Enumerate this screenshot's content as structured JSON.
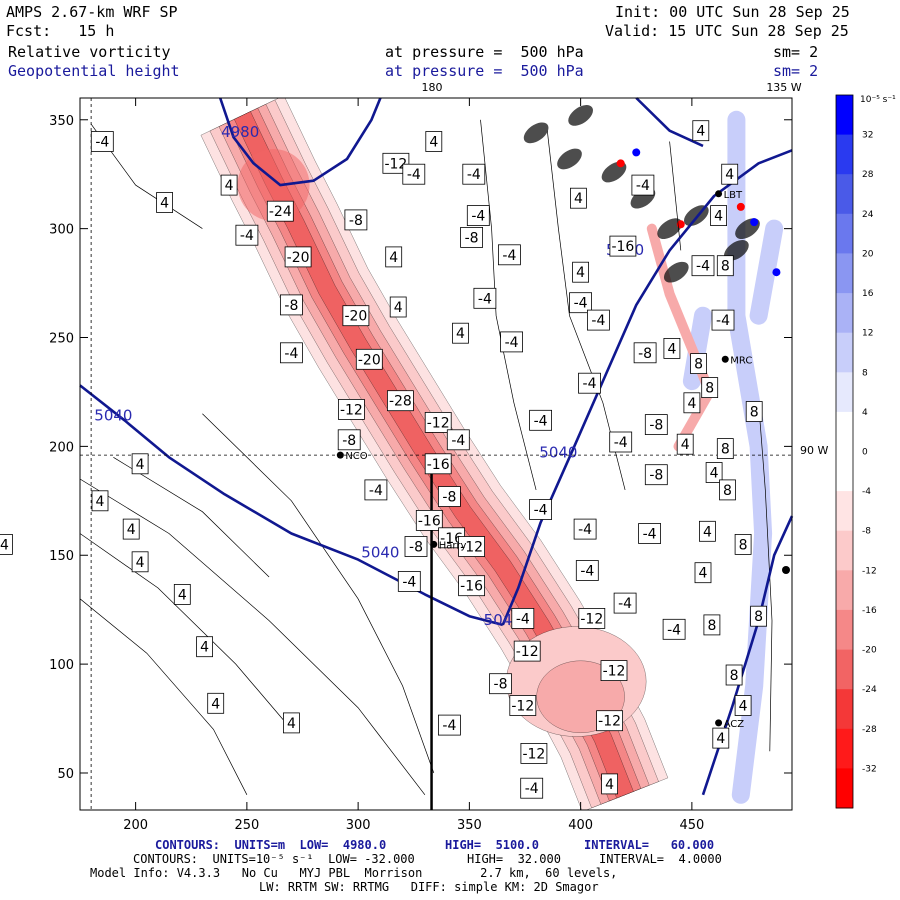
{
  "header": {
    "model": "AMPS 2.67-km WRF SP",
    "init": "Init: 00 UTC Sun 28 Sep 25",
    "fcst": "Fcst:   15 h",
    "valid": "Valid: 15 UTC Sun 28 Sep 25",
    "field1_name": "Relative vorticity",
    "field1_level": "at pressure =  500 hPa",
    "field1_smooth": "sm= 2",
    "field2_name": "Geopotential height",
    "field2_level": "at pressure =  500 hPa",
    "field2_smooth": "sm= 2"
  },
  "map_labels": {
    "lon_180": "180",
    "lon_135w": "135 W",
    "lon_90w": "90 W"
  },
  "colorbar": {
    "units": "10⁻⁵ s⁻¹",
    "labels": [
      "32",
      "28",
      "24",
      "20",
      "16",
      "12",
      "8",
      "4",
      "0",
      "-4",
      "-8",
      "-12",
      "-16",
      "-20",
      "-24",
      "-28",
      "-32"
    ],
    "colors": [
      "#0000ff",
      "#2a3af0",
      "#4a5ae8",
      "#6a78ee",
      "#8a96f2",
      "#aab2f6",
      "#c8cefa",
      "#e6e9fd",
      "#ffffff",
      "#ffffff",
      "#ffe4e4",
      "#fccaca",
      "#f8aaaa",
      "#f58888",
      "#f26464",
      "#f43838",
      "#ff1a1a",
      "#ff0000"
    ]
  },
  "chart_data": {
    "type": "contour-map",
    "x_ticks": [
      200,
      250,
      300,
      350,
      400,
      450
    ],
    "y_ticks": [
      50,
      100,
      150,
      200,
      250,
      300,
      350
    ],
    "xlim": [
      175,
      495
    ],
    "ylim": [
      33,
      360
    ],
    "cross_section_x": 333,
    "height_contours": [
      {
        "value": "5040",
        "label_at": [
          190,
          212
        ]
      },
      {
        "value": "5040",
        "label_at": [
          310,
          149
        ]
      },
      {
        "value": "5040",
        "label_at": [
          365,
          118
        ]
      },
      {
        "value": "5040",
        "label_at": [
          390,
          195
        ]
      },
      {
        "value": "5040",
        "label_at": [
          420,
          288
        ]
      },
      {
        "value": "4980",
        "label_at": [
          247,
          342
        ]
      }
    ],
    "vorticity_labels": [
      {
        "v": "-4",
        "x": 185,
        "y": 340
      },
      {
        "v": "-24",
        "x": 265,
        "y": 308
      },
      {
        "v": "-20",
        "x": 273,
        "y": 287
      },
      {
        "v": "-12",
        "x": 317,
        "y": 330
      },
      {
        "v": "-8",
        "x": 299,
        "y": 304
      },
      {
        "v": "-4",
        "x": 250,
        "y": 297
      },
      {
        "v": "-8",
        "x": 270,
        "y": 265
      },
      {
        "v": "-20",
        "x": 299,
        "y": 260
      },
      {
        "v": "-4",
        "x": 270,
        "y": 243
      },
      {
        "v": "-20",
        "x": 305,
        "y": 240
      },
      {
        "v": "-12",
        "x": 297,
        "y": 217
      },
      {
        "v": "-28",
        "x": 319,
        "y": 221
      },
      {
        "v": "-12",
        "x": 336,
        "y": 211
      },
      {
        "v": "-8",
        "x": 296,
        "y": 203
      },
      {
        "v": "-16",
        "x": 336,
        "y": 192
      },
      {
        "v": "-4",
        "x": 308,
        "y": 180
      },
      {
        "v": "-8",
        "x": 341,
        "y": 177
      },
      {
        "v": "-16",
        "x": 332,
        "y": 166
      },
      {
        "v": "-16",
        "x": 342,
        "y": 158
      },
      {
        "v": "-8",
        "x": 326,
        "y": 154
      },
      {
        "v": "-12",
        "x": 351,
        "y": 154
      },
      {
        "v": "-4",
        "x": 323,
        "y": 138
      },
      {
        "v": "-16",
        "x": 351,
        "y": 136
      },
      {
        "v": "-4",
        "x": 374,
        "y": 121
      },
      {
        "v": "-12",
        "x": 405,
        "y": 121
      },
      {
        "v": "-12",
        "x": 376,
        "y": 106
      },
      {
        "v": "-8",
        "x": 364,
        "y": 91
      },
      {
        "v": "-12",
        "x": 415,
        "y": 97
      },
      {
        "v": "-12",
        "x": 374,
        "y": 81
      },
      {
        "v": "-12",
        "x": 413,
        "y": 74
      },
      {
        "v": "-4",
        "x": 341,
        "y": 72
      },
      {
        "v": "-12",
        "x": 379,
        "y": 59
      },
      {
        "v": "-4",
        "x": 378,
        "y": 43
      },
      {
        "v": "-4",
        "x": 325,
        "y": 325
      },
      {
        "v": "-4",
        "x": 352,
        "y": 325
      },
      {
        "v": "-4",
        "x": 354,
        "y": 306
      },
      {
        "v": "-8",
        "x": 351,
        "y": 296
      },
      {
        "v": "-4",
        "x": 368,
        "y": 288
      },
      {
        "v": "-4",
        "x": 357,
        "y": 268
      },
      {
        "v": "-4",
        "x": 369,
        "y": 248
      },
      {
        "v": "-4",
        "x": 400,
        "y": 266
      },
      {
        "v": "-16",
        "x": 419,
        "y": 292
      },
      {
        "v": "-4",
        "x": 408,
        "y": 258
      },
      {
        "v": "-8",
        "x": 429,
        "y": 243
      },
      {
        "v": "-4",
        "x": 404,
        "y": 229
      },
      {
        "v": "-4",
        "x": 382,
        "y": 212
      },
      {
        "v": "-4",
        "x": 345,
        "y": 203
      },
      {
        "v": "-4",
        "x": 418,
        "y": 202
      },
      {
        "v": "-8",
        "x": 434,
        "y": 210
      },
      {
        "v": "-8",
        "x": 434,
        "y": 187
      },
      {
        "v": "-4",
        "x": 382,
        "y": 171
      },
      {
        "v": "-4",
        "x": 402,
        "y": 162
      },
      {
        "v": "-4",
        "x": 431,
        "y": 160
      },
      {
        "v": "-4",
        "x": 403,
        "y": 143
      },
      {
        "v": "-4",
        "x": 420,
        "y": 128
      },
      {
        "v": "-4",
        "x": 442,
        "y": 116
      },
      {
        "v": "-4",
        "x": 428,
        "y": 320
      },
      {
        "v": "-4",
        "x": 455,
        "y": 283
      },
      {
        "v": "-4",
        "x": 464,
        "y": 258
      },
      {
        "v": "4",
        "x": 413,
        "y": 45
      },
      {
        "v": "4",
        "x": 236,
        "y": 82
      },
      {
        "v": "4",
        "x": 270,
        "y": 73
      },
      {
        "v": "4",
        "x": 231,
        "y": 108
      },
      {
        "v": "4",
        "x": 221,
        "y": 132
      },
      {
        "v": "4",
        "x": 202,
        "y": 147
      },
      {
        "v": "4",
        "x": 198,
        "y": 162
      },
      {
        "v": "4",
        "x": 141,
        "y": 155
      },
      {
        "v": "4",
        "x": 184,
        "y": 175
      },
      {
        "v": "4",
        "x": 202,
        "y": 192
      },
      {
        "v": "4",
        "x": 213,
        "y": 312
      },
      {
        "v": "4",
        "x": 242,
        "y": 320
      },
      {
        "v": "4",
        "x": 316,
        "y": 287
      },
      {
        "v": "4",
        "x": 318,
        "y": 264
      },
      {
        "v": "4",
        "x": 346,
        "y": 252
      },
      {
        "v": "4",
        "x": 334,
        "y": 340
      },
      {
        "v": "4",
        "x": 450,
        "y": 220
      },
      {
        "v": "4",
        "x": 447,
        "y": 201
      },
      {
        "v": "4",
        "x": 460,
        "y": 188
      },
      {
        "v": "4",
        "x": 457,
        "y": 161
      },
      {
        "v": "4",
        "x": 455,
        "y": 142
      },
      {
        "v": "4",
        "x": 473,
        "y": 81
      },
      {
        "v": "4",
        "x": 463,
        "y": 66
      },
      {
        "v": "4",
        "x": 454,
        "y": 345
      },
      {
        "v": "4",
        "x": 467,
        "y": 325
      },
      {
        "v": "4",
        "x": 462,
        "y": 306
      },
      {
        "v": "4",
        "x": 441,
        "y": 245
      },
      {
        "v": "4",
        "x": 399,
        "y": 314
      },
      {
        "v": "4",
        "x": 400,
        "y": 280
      },
      {
        "v": "8",
        "x": 453,
        "y": 238
      },
      {
        "v": "8",
        "x": 458,
        "y": 227
      },
      {
        "v": "8",
        "x": 478,
        "y": 216
      },
      {
        "v": "8",
        "x": 465,
        "y": 199
      },
      {
        "v": "8",
        "x": 466,
        "y": 180
      },
      {
        "v": "8",
        "x": 473,
        "y": 155
      },
      {
        "v": "8",
        "x": 480,
        "y": 122
      },
      {
        "v": "8",
        "x": 459,
        "y": 118
      },
      {
        "v": "8",
        "x": 469,
        "y": 95
      },
      {
        "v": "8",
        "x": 465,
        "y": 283
      }
    ],
    "stations": [
      {
        "name": "NCO",
        "x": 292,
        "y": 196
      },
      {
        "name": "Harry",
        "x": 334,
        "y": 155
      },
      {
        "name": "MRC",
        "x": 465,
        "y": 240
      },
      {
        "name": "ACZ",
        "x": 462,
        "y": 73
      },
      {
        "name": "LBT",
        "x": 462,
        "y": 316
      }
    ]
  },
  "footer": {
    "line1_left": "CONTOURS:  UNITS=m  LOW=  4980.0",
    "line1_high": "HIGH=  5100.0",
    "line1_interval": "INTERVAL=   60.000",
    "line2_left": "CONTOURS:  UNITS=10⁻⁵ s⁻¹  LOW= -32.000",
    "line2_high": "HIGH=  32.000",
    "line2_interval": "INTERVAL=  4.0000",
    "line3": "Model Info: V4.3.3   No Cu   MYJ PBL  Morrison        2.7 km,  60 levels,",
    "line4": "LW: RRTM SW: RRTMG   DIFF: simple KM: 2D Smagor"
  }
}
